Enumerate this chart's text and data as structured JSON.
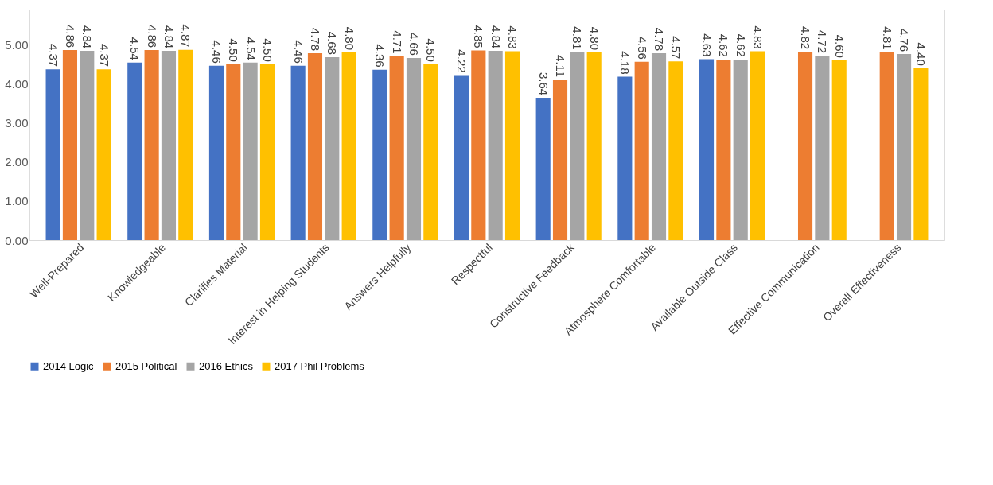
{
  "chart_data": {
    "type": "bar",
    "categories": [
      "Well-Prepared",
      "Knowledgeable",
      "Clarifies Material",
      "Interest in Helping Students",
      "Answers Helpfully",
      "Respectful",
      "Constructive Feedback",
      "Atmosphere Comfortable",
      "Available Outside Class",
      "Effective Communication",
      "Overall Effectiveness"
    ],
    "series": [
      {
        "name": "2014 Logic",
        "color": "#4472c4",
        "values": [
          4.37,
          4.54,
          4.46,
          4.46,
          4.36,
          4.22,
          3.64,
          4.18,
          4.63,
          null,
          null
        ],
        "value_labels": [
          "4.37",
          "4.54",
          "4.46",
          "4.46",
          "4.36",
          "4.22",
          "3.64",
          "4.18",
          "4.63",
          null,
          null
        ]
      },
      {
        "name": "2015 Political",
        "color": "#ed7d31",
        "values": [
          4.86,
          4.86,
          4.5,
          4.78,
          4.71,
          4.85,
          4.11,
          4.56,
          4.62,
          4.82,
          4.81
        ],
        "value_labels": [
          "4.86",
          "4.86",
          "4.50",
          "4.78",
          "4.71",
          "4.85",
          "4.11",
          "4.56",
          "4.62",
          "4.82",
          "4.81"
        ]
      },
      {
        "name": "2016 Ethics",
        "color": "#a5a5a5",
        "values": [
          4.84,
          4.84,
          4.54,
          4.68,
          4.66,
          4.84,
          4.81,
          4.78,
          4.62,
          4.72,
          4.76
        ],
        "value_labels": [
          "4.84",
          "4.84",
          "4.54",
          "4.68",
          "4.66",
          "4.84",
          "4.81",
          "4.78",
          "4.62",
          "4.72",
          "4.76"
        ]
      },
      {
        "name": "2017 Phil Problems",
        "color": "#ffc000",
        "values": [
          4.37,
          4.87,
          4.5,
          4.8,
          4.5,
          4.83,
          4.8,
          4.57,
          4.83,
          4.6,
          4.4
        ],
        "value_labels": [
          "4.37",
          "4.87",
          "4.50",
          "4.80",
          "4.50",
          "4.83",
          "4.80",
          "4.57",
          "4.83",
          "4.60",
          "4.40"
        ]
      }
    ],
    "ylim": [
      0,
      5.9
    ],
    "yticks": [
      {
        "value": 0,
        "label": "0.00"
      },
      {
        "value": 1,
        "label": "1.00"
      },
      {
        "value": 2,
        "label": "2.00"
      },
      {
        "value": 3,
        "label": "3.00"
      },
      {
        "value": 4,
        "label": "4.00"
      },
      {
        "value": 5,
        "label": "5.00"
      }
    ],
    "legend": "bottom",
    "grid": false
  }
}
